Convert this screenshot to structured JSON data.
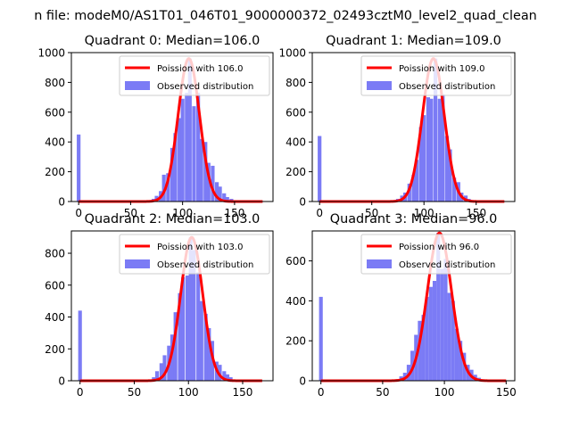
{
  "figure": {
    "suptitle": "n file: modeM0/AS1T01_046T01_9000000372_02493cztM0_level2_quad_clean"
  },
  "colors": {
    "hist": "#7b7bf5",
    "poisson": "#ff0000",
    "axes": "#000000",
    "background": "#ffffff"
  },
  "chart_data": [
    {
      "type": "bar",
      "title": "Quadrant 0: Median=106.0",
      "xlabel": "",
      "ylabel": "",
      "xlim": [
        -7,
        187
      ],
      "ylim": [
        0,
        1000
      ],
      "xticks": [
        0,
        50,
        100,
        150
      ],
      "yticks": [
        0,
        200,
        400,
        600,
        800,
        1000
      ],
      "legend": {
        "position": "top-right",
        "poisson": "Poission with 106.0",
        "observed": "Observed distribution"
      },
      "median": 106.0,
      "peak": 960,
      "bin_width": 3.6,
      "hist": [
        [
          0,
          450
        ],
        [
          68,
          6
        ],
        [
          72,
          18
        ],
        [
          75,
          38
        ],
        [
          79,
          70
        ],
        [
          82,
          180
        ],
        [
          86,
          190
        ],
        [
          90,
          360
        ],
        [
          93,
          460
        ],
        [
          97,
          560
        ],
        [
          100,
          690
        ],
        [
          104,
          730
        ],
        [
          107,
          960
        ],
        [
          111,
          640
        ],
        [
          115,
          730
        ],
        [
          118,
          420
        ],
        [
          122,
          400
        ],
        [
          125,
          260
        ],
        [
          129,
          240
        ],
        [
          133,
          130
        ],
        [
          136,
          100
        ],
        [
          140,
          55
        ],
        [
          143,
          30
        ],
        [
          147,
          18
        ],
        [
          150,
          8
        ],
        [
          154,
          3
        ]
      ],
      "curve_range": [
        0,
        177
      ]
    },
    {
      "type": "bar",
      "title": "Quadrant 1: Median=109.0",
      "xlabel": "",
      "ylabel": "",
      "xlim": [
        -7,
        187
      ],
      "ylim": [
        0,
        1000
      ],
      "xticks": [
        0,
        50,
        100,
        150
      ],
      "yticks": [
        0,
        200,
        400,
        600,
        800,
        1000
      ],
      "legend": {
        "position": "top-right",
        "poisson": "Poission with 109.0",
        "observed": "Observed distribution"
      },
      "median": 109.0,
      "peak": 960,
      "bin_width": 3.6,
      "hist": [
        [
          0,
          440
        ],
        [
          72,
          6
        ],
        [
          75,
          18
        ],
        [
          79,
          40
        ],
        [
          82,
          60
        ],
        [
          86,
          120
        ],
        [
          90,
          180
        ],
        [
          93,
          280
        ],
        [
          97,
          500
        ],
        [
          100,
          580
        ],
        [
          104,
          700
        ],
        [
          107,
          690
        ],
        [
          111,
          960
        ],
        [
          115,
          690
        ],
        [
          118,
          720
        ],
        [
          122,
          440
        ],
        [
          125,
          350
        ],
        [
          129,
          160
        ],
        [
          133,
          130
        ],
        [
          136,
          60
        ],
        [
          140,
          40
        ],
        [
          143,
          18
        ],
        [
          147,
          8
        ],
        [
          150,
          3
        ]
      ],
      "curve_range": [
        0,
        177
      ]
    },
    {
      "type": "bar",
      "title": "Quadrant 2: Median=103.0",
      "xlabel": "",
      "ylabel": "",
      "xlim": [
        -8,
        178
      ],
      "ylim": [
        0,
        940
      ],
      "xticks": [
        0,
        50,
        100,
        150
      ],
      "yticks": [
        0,
        200,
        400,
        600,
        800
      ],
      "legend": {
        "position": "top-right",
        "poisson": "Poission with 103.0",
        "observed": "Observed distribution"
      },
      "median": 103.0,
      "peak": 900,
      "bin_width": 3.4,
      "hist": [
        [
          0,
          440
        ],
        [
          65,
          8
        ],
        [
          68,
          22
        ],
        [
          71,
          60
        ],
        [
          75,
          110
        ],
        [
          78,
          160
        ],
        [
          82,
          220
        ],
        [
          85,
          290
        ],
        [
          88,
          430
        ],
        [
          92,
          550
        ],
        [
          95,
          650
        ],
        [
          99,
          660
        ],
        [
          102,
          900
        ],
        [
          105,
          820
        ],
        [
          109,
          680
        ],
        [
          112,
          500
        ],
        [
          116,
          420
        ],
        [
          119,
          330
        ],
        [
          122,
          250
        ],
        [
          126,
          120
        ],
        [
          129,
          100
        ],
        [
          133,
          60
        ],
        [
          136,
          40
        ],
        [
          139,
          22
        ],
        [
          143,
          8
        ],
        [
          146,
          3
        ]
      ],
      "curve_range": [
        0,
        168
      ]
    },
    {
      "type": "bar",
      "title": "Quadrant 3: Median=96.0",
      "xlabel": "",
      "ylabel": "",
      "xlim": [
        -7,
        157
      ],
      "ylim": [
        0,
        750
      ],
      "xticks": [
        0,
        50,
        100,
        150
      ],
      "yticks": [
        0,
        200,
        400,
        600
      ],
      "legend": {
        "position": "top-right",
        "poisson": "Poission with 96.0",
        "observed": "Observed distribution"
      },
      "median": 96.0,
      "peak": 740,
      "bin_width": 3.0,
      "hist": [
        [
          0,
          420
        ],
        [
          62,
          8
        ],
        [
          65,
          22
        ],
        [
          68,
          40
        ],
        [
          71,
          80
        ],
        [
          74,
          150
        ],
        [
          77,
          230
        ],
        [
          80,
          300
        ],
        [
          83,
          330
        ],
        [
          86,
          420
        ],
        [
          89,
          470
        ],
        [
          92,
          500
        ],
        [
          95,
          740
        ],
        [
          98,
          560
        ],
        [
          101,
          610
        ],
        [
          104,
          440
        ],
        [
          107,
          400
        ],
        [
          110,
          260
        ],
        [
          113,
          200
        ],
        [
          116,
          140
        ],
        [
          119,
          80
        ],
        [
          122,
          55
        ],
        [
          125,
          30
        ],
        [
          128,
          15
        ],
        [
          131,
          6
        ]
      ],
      "curve_range": [
        0,
        150
      ]
    }
  ]
}
